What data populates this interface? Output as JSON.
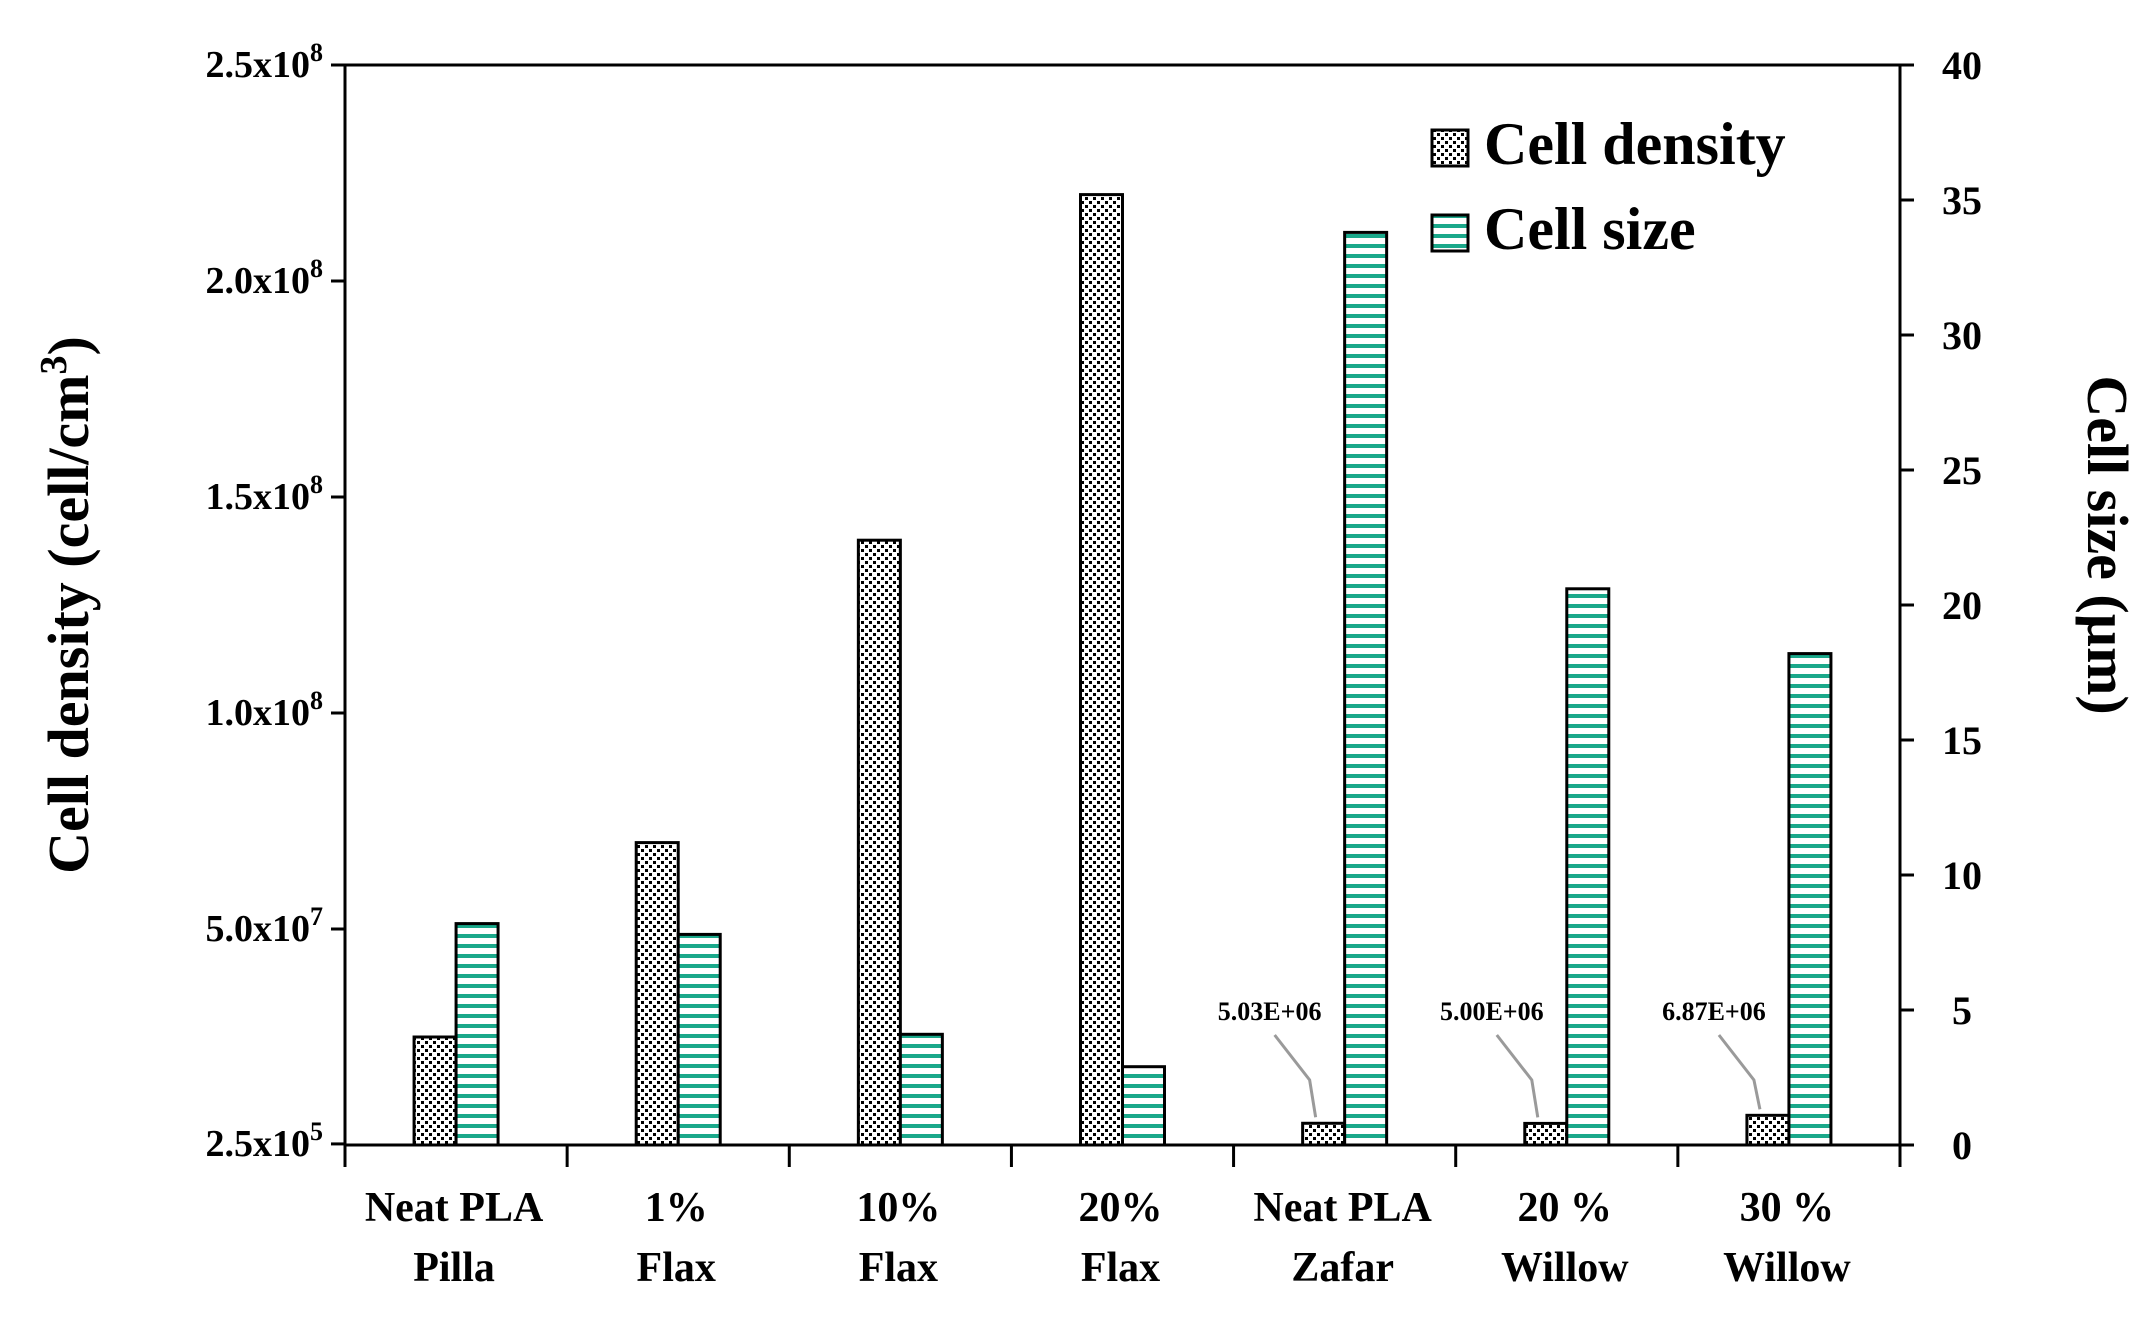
{
  "chart_data": {
    "type": "bar",
    "categories": [
      [
        "Neat PLA",
        "Pilla"
      ],
      [
        "1%",
        "Flax"
      ],
      [
        "10%",
        "Flax"
      ],
      [
        "20%",
        "Flax"
      ],
      [
        "Neat PLA",
        "Zafar"
      ],
      [
        "20 %",
        "Willow"
      ],
      [
        "30 %",
        "Willow"
      ]
    ],
    "series": [
      {
        "name": "Cell density",
        "axis": "left",
        "pattern": "dots",
        "values": [
          25000000,
          70000000,
          140000000,
          220000000,
          5030000,
          5000000,
          6870000
        ]
      },
      {
        "name": "Cell size",
        "axis": "right",
        "pattern": "horizontal-lines",
        "color": "#1aa88a",
        "values": [
          8.2,
          7.8,
          4.1,
          2.9,
          33.8,
          20.6,
          18.2
        ]
      }
    ],
    "left_axis": {
      "label_main": "Cell density (cell/cm",
      "label_sup": "3",
      "label_end": ")",
      "ticks": [
        {
          "value": 250000,
          "base": "2.5x10",
          "exp": "5"
        },
        {
          "value": 50000000,
          "base": "5.0x10",
          "exp": "7"
        },
        {
          "value": 100000000,
          "base": "1.0x10",
          "exp": "8"
        },
        {
          "value": 150000000,
          "base": "1.5x10",
          "exp": "8"
        },
        {
          "value": 200000000,
          "base": "2.0x10",
          "exp": "8"
        },
        {
          "value": 250000000,
          "base": "2.5x10",
          "exp": "8"
        }
      ],
      "ylim": [
        0,
        250000000
      ]
    },
    "right_axis": {
      "label": "Cell size (µm)",
      "ticks": [
        "0",
        "5",
        "10",
        "15",
        "20",
        "25",
        "30",
        "35",
        "40"
      ],
      "ylim": [
        0,
        40
      ]
    },
    "annotations": [
      {
        "text": "5.03E+06",
        "category_index": 4
      },
      {
        "text": "5.00E+06",
        "category_index": 5
      },
      {
        "text": "6.87E+06",
        "category_index": 6
      }
    ],
    "legend_position": "top-right",
    "grid": false
  }
}
